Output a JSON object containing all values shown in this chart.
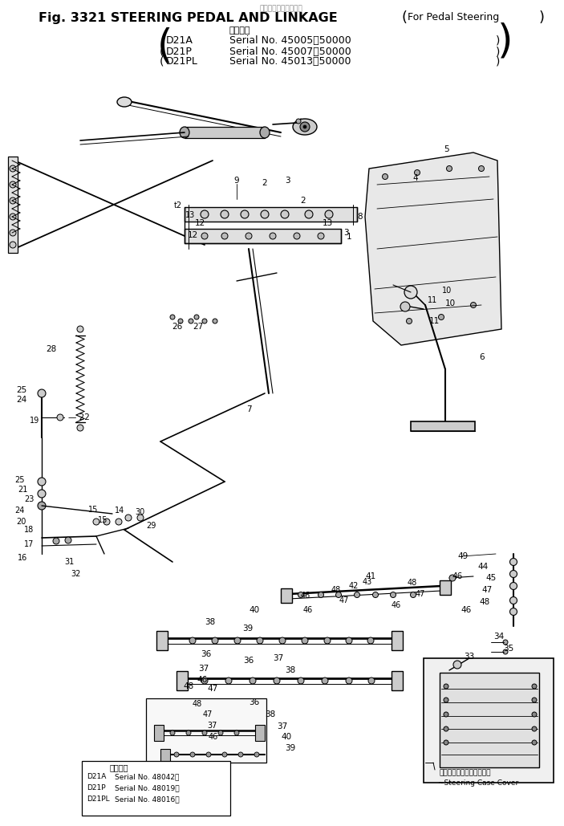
{
  "bg_color": "#ffffff",
  "line_color": "#000000",
  "fig_width": 7.03,
  "fig_height": 10.29,
  "dpi": 100,
  "title_main": "Fig. 3321 STEERING PEDAL AND LINKAGE",
  "title_suffix": "For Pedal Steering",
  "title_jp_top": "ペダルステアリング用",
  "serial_jp_label": "適用号機",
  "serial1": [
    [
      "D21A",
      "Serial No. 45005～50000"
    ],
    [
      "D21P",
      "Serial No. 45007～50000"
    ],
    [
      "D21PL",
      "Serial No. 45013～50000"
    ]
  ],
  "serial2_jp": "適用号機",
  "serial2": [
    [
      "D21A",
      "Serial No. 48042～"
    ],
    [
      "D21P",
      "Serial No. 48019～"
    ],
    [
      "D21PL",
      "Serial No. 48016～"
    ]
  ],
  "sc_cover_jp": "ステアリングケースカバー",
  "sc_cover_en": "~Steering Case Cover"
}
